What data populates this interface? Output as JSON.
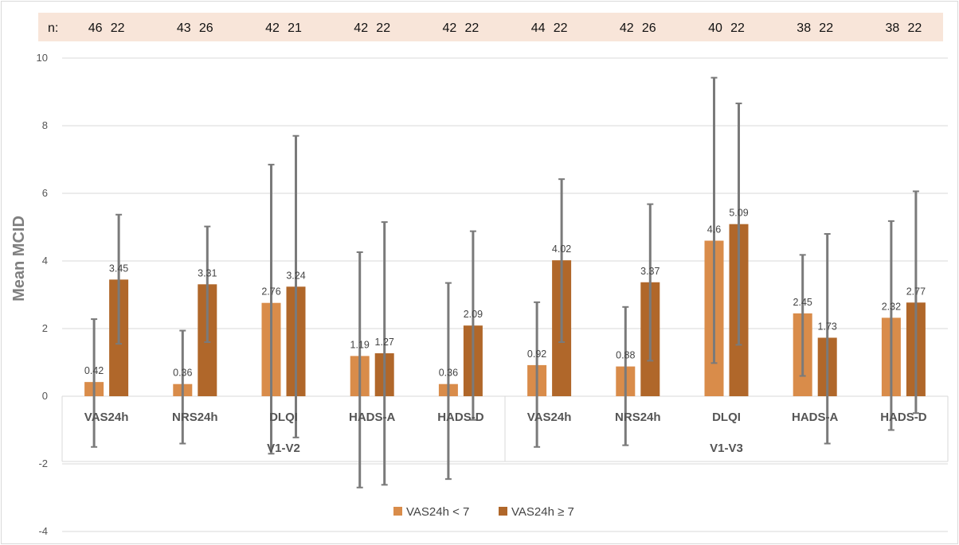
{
  "chart_data": {
    "type": "bar",
    "ylabel": "Mean MCID",
    "ylim": [
      -4,
      10
    ],
    "yticks": [
      -4,
      -2,
      0,
      2,
      4,
      6,
      8,
      10
    ],
    "grid": true,
    "legend_position": "bottom",
    "n_prefix": "n:",
    "groups": [
      {
        "label": "V1-V2",
        "categories": [
          "VAS24h",
          "NRS24h",
          "DLQI",
          "HADS-A",
          "HADS-D"
        ]
      },
      {
        "label": "V1-V3",
        "categories": [
          "VAS24h",
          "NRS24h",
          "DLQI",
          "HADS-A",
          "HADS-D"
        ]
      }
    ],
    "categories": [
      "VAS24h",
      "NRS24h",
      "DLQI",
      "HADS-A",
      "HADS-D",
      "VAS24h",
      "NRS24h",
      "DLQI",
      "HADS-A",
      "HADS-D"
    ],
    "series": [
      {
        "name": "VAS24h < 7",
        "color": "#D98C4A",
        "values": [
          0.42,
          0.36,
          2.76,
          1.19,
          0.36,
          0.92,
          0.88,
          4.6,
          2.45,
          2.32
        ],
        "value_labels": [
          "0.42",
          "0.36",
          "2.76",
          "1.19",
          "0.36",
          "0.92",
          "0.88",
          "4.6",
          "2.45",
          "2.32"
        ],
        "error_low": [
          -1.5,
          -1.4,
          -1.7,
          -2.7,
          -2.45,
          -1.5,
          -1.45,
          0.98,
          0.6,
          -1.0
        ],
        "error_high": [
          2.28,
          1.94,
          6.85,
          4.26,
          3.35,
          2.78,
          2.64,
          9.42,
          4.18,
          5.18
        ],
        "n": [
          "46",
          "43",
          "42",
          "42",
          "42",
          "44",
          "42",
          "40",
          "38",
          "38"
        ]
      },
      {
        "name": "VAS24h ≥ 7",
        "color": "#B0672A",
        "values": [
          3.45,
          3.31,
          3.24,
          1.27,
          2.09,
          4.02,
          3.37,
          5.09,
          1.73,
          2.77
        ],
        "value_labels": [
          "3.45",
          "3.31",
          "3.24",
          "1.27",
          "2.09",
          "4.02",
          "3.37",
          "5.09",
          "1.73",
          "2.77"
        ],
        "error_low": [
          1.55,
          1.6,
          -1.22,
          -2.62,
          -0.7,
          1.6,
          1.05,
          1.52,
          -1.4,
          -0.5
        ],
        "error_high": [
          5.37,
          5.02,
          7.7,
          5.15,
          4.88,
          6.42,
          5.68,
          8.66,
          4.8,
          6.06
        ],
        "n": [
          "22",
          "26",
          "21",
          "22",
          "22",
          "22",
          "26",
          "22",
          "22",
          "22"
        ]
      }
    ]
  }
}
